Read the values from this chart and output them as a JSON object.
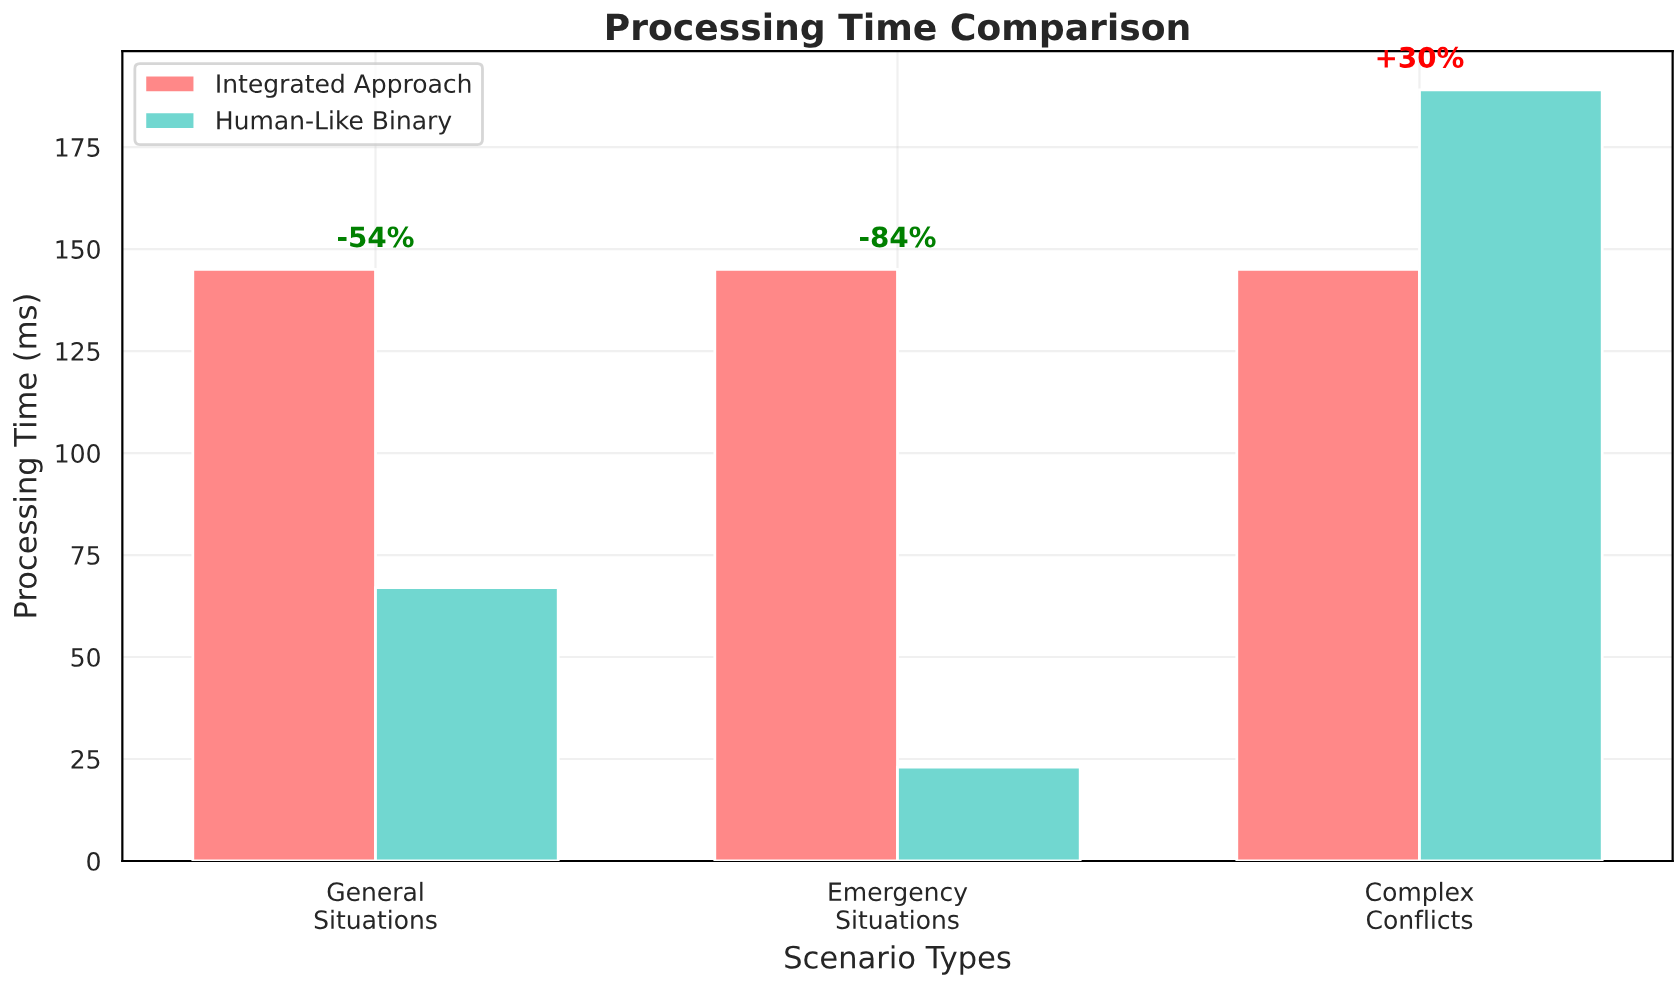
{
  "chart_data": {
    "type": "bar",
    "title": "Processing Time Comparison",
    "xlabel": "Scenario Types",
    "ylabel": "Processing Time (ms)",
    "categories": [
      "General\nSituations",
      "Emergency\nSituations",
      "Complex\nConflicts"
    ],
    "series": [
      {
        "name": "Integrated Approach",
        "color": "#ff8888",
        "values": [
          145,
          145,
          145
        ]
      },
      {
        "name": "Human-Like Binary",
        "color": "#71d7d0",
        "values": [
          67,
          23,
          189
        ]
      }
    ],
    "ylim": [
      0,
      198.5
    ],
    "yticks": [
      0,
      25,
      50,
      75,
      100,
      125,
      150,
      175
    ],
    "annotations": [
      "-54%",
      "-84%",
      "+30%"
    ],
    "grid": true,
    "legend": "top left"
  }
}
